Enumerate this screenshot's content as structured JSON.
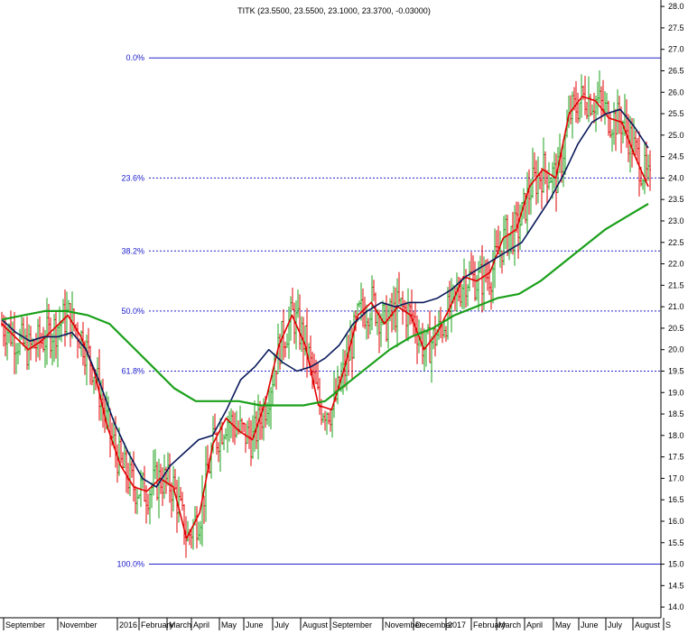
{
  "chart_data": {
    "type": "candlestick",
    "title": "TITK (23.5500, 23.5500, 23.1000, 23.3700, -0.03000)",
    "ylim": [
      13.75,
      28.15
    ],
    "yticks": [
      14.0,
      14.5,
      15.0,
      15.5,
      16.0,
      16.5,
      17.0,
      17.5,
      18.0,
      18.5,
      19.0,
      19.5,
      20.0,
      20.5,
      21.0,
      21.5,
      22.0,
      22.5,
      23.0,
      23.5,
      24.0,
      24.5,
      25.0,
      25.5,
      26.0,
      26.5,
      27.0,
      27.5,
      28.0
    ],
    "ytick_labels": [
      "14.0",
      "14.5",
      "15.0",
      "15.5",
      "16.0",
      "16.5",
      "17.0",
      "17.5",
      "18.0",
      "18.5",
      "19.0",
      "19.5",
      "20.0",
      "20.5",
      "21.0",
      "21.5",
      "22.0",
      "22.5",
      "23.0",
      "23.5",
      "24.0",
      "24.5",
      "25.0",
      "25.5",
      "26.0",
      "26.5",
      "27.0",
      "27.5",
      "28.0"
    ],
    "x_period_labels": [
      "September",
      "November",
      "2016",
      "February",
      "March",
      "April",
      "May",
      "June",
      "July",
      "August",
      "September",
      "November",
      "December",
      "2017",
      "February",
      "March",
      "April",
      "May",
      "June",
      "July",
      "August",
      "S"
    ],
    "fibonacci": [
      {
        "label": "0.0%",
        "value": 26.8
      },
      {
        "label": "23.6%",
        "value": 24.0
      },
      {
        "label": "38.2%",
        "value": 22.3
      },
      {
        "label": "50.0%",
        "value": 20.9
      },
      {
        "label": "61.8%",
        "value": 19.5
      },
      {
        "label": "100.0%",
        "value": 15.0
      }
    ],
    "moving_averages": [
      {
        "color": "#e00000",
        "values": [
          20.6,
          20.3,
          20.0,
          20.2,
          20.5,
          20.8,
          20.3,
          19.5,
          18.2,
          17.3,
          16.8,
          16.7,
          17.0,
          16.8,
          15.6,
          16.2,
          17.8,
          18.4,
          18.1,
          17.9,
          18.8,
          20.1,
          20.8,
          20.1,
          18.7,
          18.6,
          19.6,
          20.8,
          21.1,
          20.6,
          21.0,
          20.8,
          20.0,
          20.4,
          21.0,
          21.7,
          21.6,
          21.8,
          22.6,
          22.8,
          23.8,
          24.2,
          24.0,
          25.5,
          25.9,
          25.8,
          25.4,
          25.3,
          24.5,
          23.8
        ]
      },
      {
        "color": "#0a1a5c",
        "values": [
          20.7,
          20.4,
          20.2,
          20.3,
          20.3,
          20.4,
          20.0,
          19.2,
          18.3,
          17.6,
          17.0,
          16.8,
          17.3,
          17.6,
          17.9,
          18.0,
          18.6,
          19.3,
          19.6,
          20.0,
          19.7,
          19.5,
          19.6,
          19.8,
          20.1,
          20.6,
          20.9,
          21.1,
          21.0,
          21.1,
          21.1,
          21.2,
          21.4,
          21.7,
          21.9,
          22.1,
          22.3,
          22.5,
          23.0,
          23.5,
          24.1,
          24.8,
          25.3,
          25.5,
          25.6,
          25.2,
          24.7
        ]
      },
      {
        "color": "#1aa01a",
        "values": [
          20.7,
          20.8,
          20.9,
          20.9,
          20.8,
          20.6,
          20.1,
          19.6,
          19.1,
          18.8,
          18.8,
          18.8,
          18.7,
          18.7,
          18.7,
          18.8,
          19.2,
          19.6,
          20.0,
          20.3,
          20.5,
          20.8,
          21.0,
          21.2,
          21.3,
          21.6,
          22.0,
          22.4,
          22.8,
          23.1,
          23.4
        ]
      }
    ],
    "candle_color_up": "#1aa01a",
    "candle_color_down": "#e00000",
    "grid": false
  }
}
